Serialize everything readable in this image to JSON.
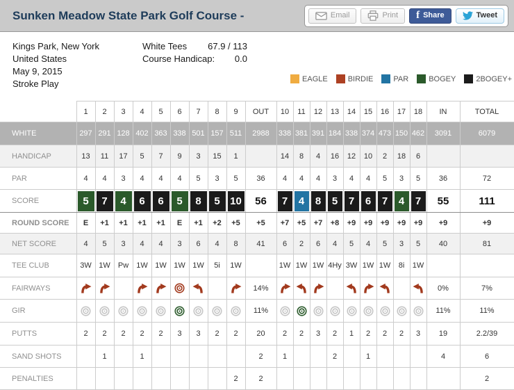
{
  "header": {
    "title": "Sunken Meadow State Park Golf Course -",
    "buttons": {
      "email": "Email",
      "print": "Print",
      "share": "Share",
      "tweet": "Tweet"
    }
  },
  "info": {
    "location": "Kings Park, New York",
    "country": "United States",
    "date": "May 9, 2015",
    "play_type": "Stroke Play",
    "tees_label": "White Tees",
    "tees_rating": "67.9 / 113",
    "course_handicap_label": "Course Handicap:",
    "course_handicap_value": "0.0"
  },
  "legend": [
    {
      "label": "EAGLE",
      "color": "#f0ac41"
    },
    {
      "label": "BIRDIE",
      "color": "#ad4123"
    },
    {
      "label": "PAR",
      "color": "#2274a3"
    },
    {
      "label": "BOGEY",
      "color": "#2b5a2b"
    },
    {
      "label": "2BOGEY+",
      "color": "#1b1b1b"
    }
  ],
  "colors": {
    "par": "#2274a3",
    "bogey": "#2b5a2b",
    "double": "#1b1b1b",
    "fairway_icon": "#a23a1e",
    "gir_miss": "#c6c6c6",
    "gir_hit": "#2d5c2d"
  },
  "scorecard": {
    "columns": [
      "1",
      "2",
      "3",
      "4",
      "5",
      "6",
      "7",
      "8",
      "9",
      "OUT",
      "10",
      "11",
      "12",
      "13",
      "14",
      "15",
      "16",
      "17",
      "18",
      "IN",
      "TOTAL"
    ],
    "rows": [
      {
        "label": "WHITE",
        "type": "text",
        "front": [
          "297",
          "291",
          "128",
          "402",
          "363",
          "338",
          "501",
          "157",
          "511"
        ],
        "out": "2988",
        "back": [
          "338",
          "381",
          "391",
          "184",
          "338",
          "374",
          "473",
          "150",
          "462"
        ],
        "in": "3091",
        "total": "6079"
      },
      {
        "label": "HANDICAP",
        "type": "text",
        "front": [
          "13",
          "11",
          "17",
          "5",
          "7",
          "9",
          "3",
          "15",
          "1"
        ],
        "out": "",
        "back": [
          "14",
          "8",
          "4",
          "16",
          "12",
          "10",
          "2",
          "18",
          "6"
        ],
        "in": "",
        "total": ""
      },
      {
        "label": "PAR",
        "type": "text",
        "front": [
          "4",
          "4",
          "3",
          "4",
          "4",
          "4",
          "5",
          "3",
          "5"
        ],
        "out": "36",
        "back": [
          "4",
          "4",
          "4",
          "3",
          "4",
          "4",
          "5",
          "3",
          "5"
        ],
        "in": "36",
        "total": "72"
      },
      {
        "label": "SCORE",
        "type": "score",
        "front": [
          "5",
          "7",
          "4",
          "6",
          "6",
          "5",
          "8",
          "5",
          "10"
        ],
        "front_class": [
          "bogey",
          "double",
          "bogey",
          "double",
          "double",
          "bogey",
          "double",
          "double",
          "double"
        ],
        "out": "56",
        "back": [
          "7",
          "4",
          "8",
          "5",
          "7",
          "6",
          "7",
          "4",
          "7"
        ],
        "back_class": [
          "double",
          "par",
          "double",
          "double",
          "double",
          "double",
          "double",
          "bogey",
          "double"
        ],
        "in": "55",
        "total": "111"
      },
      {
        "label": "ROUND SCORE",
        "type": "text",
        "front": [
          "E",
          "+1",
          "+1",
          "+1",
          "+1",
          "E",
          "+1",
          "+2",
          "+5"
        ],
        "out": "+5",
        "back": [
          "+7",
          "+5",
          "+7",
          "+8",
          "+9",
          "+9",
          "+9",
          "+9",
          "+9"
        ],
        "in": "+9",
        "total": "+9"
      },
      {
        "label": "NET SCORE",
        "type": "text",
        "front": [
          "4",
          "5",
          "3",
          "4",
          "4",
          "3",
          "6",
          "4",
          "8"
        ],
        "out": "41",
        "back": [
          "6",
          "2",
          "6",
          "4",
          "5",
          "4",
          "5",
          "3",
          "5"
        ],
        "in": "40",
        "total": "81"
      },
      {
        "label": "TEE CLUB",
        "type": "text",
        "front": [
          "3W",
          "1W",
          "Pw",
          "1W",
          "1W",
          "1W",
          "1W",
          "5i",
          "1W"
        ],
        "out": "",
        "back": [
          "1W",
          "1W",
          "1W",
          "4Hy",
          "3W",
          "1W",
          "1W",
          "8i",
          "1W"
        ],
        "in": "",
        "total": ""
      },
      {
        "label": "FAIRWAYS",
        "type": "icon",
        "front": [
          "fairway-miss-right",
          "fairway-miss-right",
          "",
          "fairway-miss-right",
          "fairway-miss-right",
          "fairway-hit-target",
          "fairway-miss-left",
          "",
          "fairway-miss-right"
        ],
        "out": "14%",
        "back": [
          "fairway-miss-right",
          "fairway-miss-left",
          "fairway-miss-right",
          "",
          "fairway-miss-left",
          "fairway-miss-right",
          "fairway-miss-left",
          "",
          "fairway-miss-left"
        ],
        "in": "0%",
        "total": "7%"
      },
      {
        "label": "GIR",
        "type": "icon",
        "front": [
          "gir-miss-target",
          "gir-miss-target",
          "gir-miss-target",
          "gir-miss-target",
          "gir-miss-target",
          "gir-hit-target",
          "gir-miss-target",
          "gir-miss-target",
          "gir-miss-target"
        ],
        "out": "11%",
        "back": [
          "gir-miss-target",
          "gir-hit-target",
          "gir-miss-target",
          "gir-miss-target",
          "gir-miss-target",
          "gir-miss-target",
          "gir-miss-target",
          "gir-miss-target",
          "gir-miss-target"
        ],
        "in": "11%",
        "total": "11%"
      },
      {
        "label": "PUTTS",
        "type": "text",
        "front": [
          "2",
          "2",
          "2",
          "2",
          "2",
          "3",
          "3",
          "2",
          "2"
        ],
        "out": "20",
        "back": [
          "2",
          "2",
          "3",
          "2",
          "1",
          "2",
          "2",
          "2",
          "3"
        ],
        "in": "19",
        "total": "2.2/39"
      },
      {
        "label": "SAND SHOTS",
        "type": "text",
        "front": [
          "",
          "1",
          "",
          "1",
          "",
          "",
          "",
          "",
          ""
        ],
        "out": "2",
        "back": [
          "1",
          "",
          "",
          "2",
          "",
          "1",
          "",
          "",
          ""
        ],
        "in": "4",
        "total": "6"
      },
      {
        "label": "PENALTIES",
        "type": "text",
        "front": [
          "",
          "",
          "",
          "",
          "",
          "",
          "",
          "",
          "2"
        ],
        "out": "2",
        "back": [
          "",
          "",
          "",
          "",
          "",
          "",
          "",
          "",
          ""
        ],
        "in": "",
        "total": "2"
      }
    ]
  }
}
